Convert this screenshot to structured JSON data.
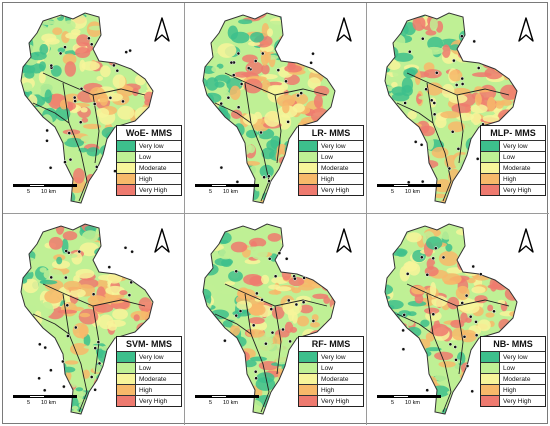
{
  "legend_classes": [
    {
      "label": "Very low",
      "color": "#3dbf8c"
    },
    {
      "label": "Low",
      "color": "#bff095"
    },
    {
      "label": "Moderate",
      "color": "#f7f59a"
    },
    {
      "label": "High",
      "color": "#f7b96a"
    },
    {
      "label": "Very High",
      "color": "#ee7a6f"
    }
  ],
  "scale": {
    "label_start": "5",
    "label_end": "10 km"
  },
  "panels": [
    {
      "title": "WoE- MMS"
    },
    {
      "title": "LR- MMS"
    },
    {
      "title": "MLP- MMS"
    },
    {
      "title": "SVM- MMS"
    },
    {
      "title": "RF- MMS"
    },
    {
      "title": "NB- MMS"
    }
  ]
}
